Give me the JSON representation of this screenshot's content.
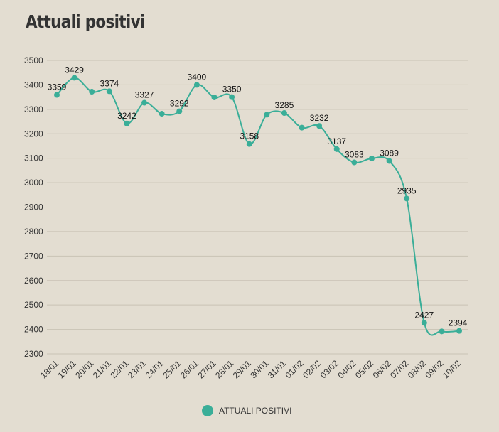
{
  "chart_data": {
    "type": "line",
    "title": "Attuali positivi",
    "categories": [
      "18/01",
      "19/01",
      "20/01",
      "21/01",
      "22/01",
      "23/01",
      "24/01",
      "25/01",
      "26/01",
      "27/01",
      "28/01",
      "29/01",
      "30/01",
      "31/01",
      "01/02",
      "02/02",
      "03/02",
      "04/02",
      "05/02",
      "06/02",
      "07/02",
      "08/02",
      "09/02",
      "10/02"
    ],
    "series": [
      {
        "name": "ATTUALI POSITIVI",
        "values": [
          3359,
          3429,
          3372,
          3374,
          3242,
          3327,
          3282,
          3292,
          3400,
          3349,
          3350,
          3158,
          3278,
          3285,
          3225,
          3232,
          3137,
          3083,
          3099,
          3089,
          2935,
          2427,
          2392,
          2394
        ],
        "labels": [
          "3359",
          "3429",
          "",
          "3374",
          "3242",
          "3327",
          "",
          "3292",
          "3400",
          "",
          "3350",
          "3158",
          "",
          "3285",
          "",
          "3232",
          "3137",
          "3083",
          "",
          "3089",
          "2935",
          "2427",
          "",
          "2394"
        ],
        "color": "#3aae98"
      }
    ],
    "yticks": [
      "2300",
      "2400",
      "2500",
      "2600",
      "2700",
      "2800",
      "2900",
      "3000",
      "3100",
      "3200",
      "3300",
      "3400",
      "3500"
    ],
    "ylim": [
      2300,
      3500
    ],
    "grid": true,
    "legend": "bottom-center"
  }
}
